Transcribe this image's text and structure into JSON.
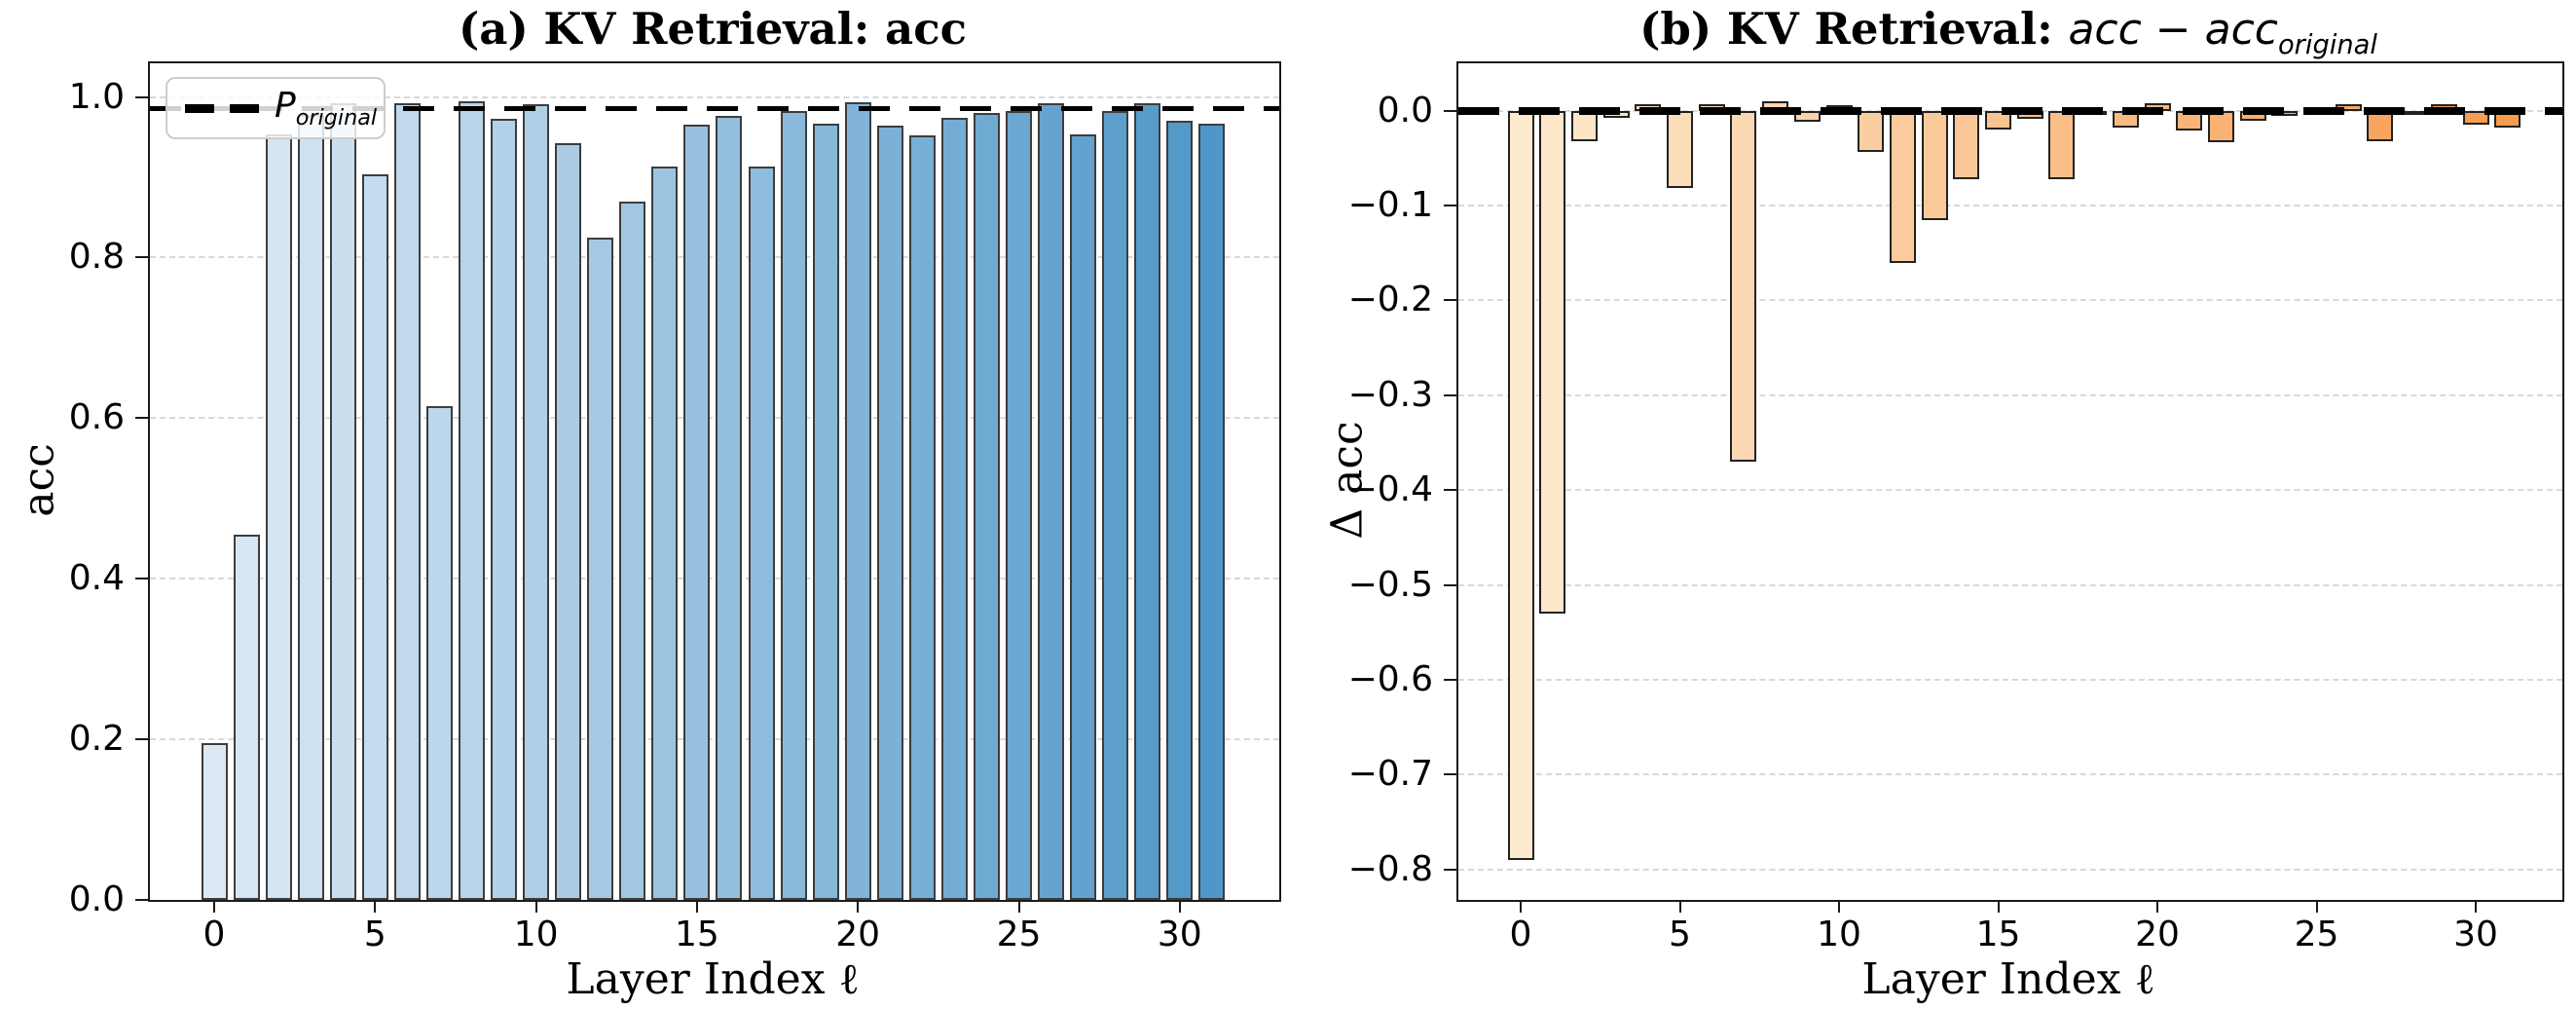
{
  "page": {
    "background": "#ffffff"
  },
  "panel_a": {
    "title": "(a) KV Retrieval: acc",
    "ylabel": "acc",
    "xlabel": "Layer Index ℓ",
    "legend": {
      "symbol": "dashed-line",
      "label_main": "P",
      "label_sub": "original"
    }
  },
  "panel_b": {
    "title_prefix": "(b) KV Retrieval: ",
    "title_math_main": "acc − acc",
    "title_math_sub": "original",
    "ylabel": "Δ acc",
    "xlabel": "Layer Index ℓ"
  },
  "chart_data": [
    {
      "type": "bar",
      "title": "(a) KV Retrieval: acc",
      "xlabel": "Layer Index ℓ",
      "ylabel": "acc",
      "x": [
        0,
        1,
        2,
        3,
        4,
        5,
        6,
        7,
        8,
        9,
        10,
        11,
        12,
        13,
        14,
        15,
        16,
        17,
        18,
        19,
        20,
        21,
        22,
        23,
        24,
        25,
        26,
        27,
        28,
        29,
        30,
        31
      ],
      "values": [
        0.195,
        0.455,
        0.953,
        0.978,
        0.992,
        0.904,
        0.992,
        0.615,
        0.995,
        0.973,
        0.991,
        0.942,
        0.825,
        0.87,
        0.913,
        0.965,
        0.976,
        0.913,
        0.982,
        0.967,
        0.993,
        0.964,
        0.952,
        0.974,
        0.98,
        0.983,
        0.992,
        0.953,
        0.982,
        0.992,
        0.97,
        0.967
      ],
      "ylim": [
        0,
        1.042
      ],
      "yticks": [
        {
          "v": 0.0,
          "label": "0.0"
        },
        {
          "v": 0.2,
          "label": "0.2"
        },
        {
          "v": 0.4,
          "label": "0.4"
        },
        {
          "v": 0.6,
          "label": "0.6"
        },
        {
          "v": 0.8,
          "label": "0.8"
        },
        {
          "v": 1.0,
          "label": "1.0"
        }
      ],
      "xticks": [
        0,
        5,
        10,
        15,
        20,
        25,
        30
      ],
      "grid": true,
      "legend_position": "upper-left",
      "reference_line": {
        "value": 0.985,
        "label": "P_original",
        "style": "dashed",
        "color": "#000000"
      },
      "bar_colors": {
        "start": "#dce9f5",
        "end": "#4f97c8",
        "edge": "#3d3d3d"
      }
    },
    {
      "type": "bar",
      "title": "(b) KV Retrieval: acc − acc_original",
      "xlabel": "Layer Index ℓ",
      "ylabel": "Δ acc",
      "x": [
        0,
        1,
        2,
        3,
        4,
        5,
        6,
        7,
        8,
        9,
        10,
        11,
        12,
        13,
        14,
        15,
        16,
        17,
        18,
        19,
        20,
        21,
        22,
        23,
        24,
        25,
        26,
        27,
        28,
        29,
        30,
        31
      ],
      "values": [
        -0.79,
        -0.53,
        -0.032,
        -0.007,
        0.007,
        -0.081,
        0.007,
        -0.37,
        0.01,
        -0.012,
        0.006,
        -0.043,
        -0.16,
        -0.115,
        -0.072,
        -0.02,
        -0.009,
        -0.072,
        -0.003,
        -0.018,
        0.008,
        -0.021,
        -0.033,
        -0.011,
        -0.005,
        -0.002,
        0.007,
        -0.032,
        -0.003,
        0.007,
        -0.015,
        -0.018
      ],
      "ylim": [
        -0.832,
        0.05
      ],
      "yticks": [
        {
          "v": 0.0,
          "label": "0.0"
        },
        {
          "v": -0.1,
          "label": "−0.1"
        },
        {
          "v": -0.2,
          "label": "−0.2"
        },
        {
          "v": -0.3,
          "label": "−0.3"
        },
        {
          "v": -0.4,
          "label": "−0.4"
        },
        {
          "v": -0.5,
          "label": "−0.5"
        },
        {
          "v": -0.6,
          "label": "−0.6"
        },
        {
          "v": -0.7,
          "label": "−0.7"
        },
        {
          "v": -0.8,
          "label": "−0.8"
        }
      ],
      "xticks": [
        0,
        5,
        10,
        15,
        20,
        25,
        30
      ],
      "grid": true,
      "reference_line": {
        "value": 0.0,
        "label": "",
        "style": "dashed-thick",
        "color": "#000000"
      },
      "bar_colors": {
        "start": "#fdeacf",
        "end": "#f79b4e",
        "edge": "#222222"
      }
    }
  ]
}
